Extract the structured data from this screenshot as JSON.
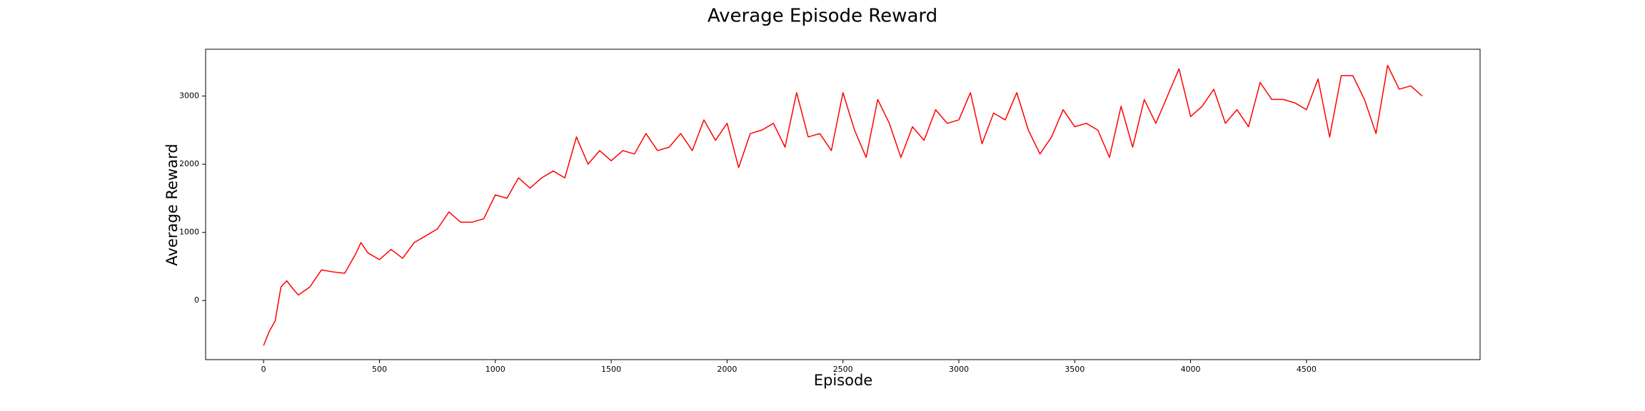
{
  "chart_data": {
    "type": "line",
    "title": "Average Episode Reward",
    "x_label": "Episode",
    "y_label": "Average Reward",
    "x": [
      0,
      25,
      50,
      75,
      100,
      125,
      150,
      200,
      250,
      300,
      350,
      400,
      420,
      450,
      500,
      550,
      600,
      650,
      700,
      750,
      800,
      850,
      900,
      950,
      1000,
      1050,
      1100,
      1150,
      1200,
      1250,
      1300,
      1350,
      1400,
      1450,
      1500,
      1550,
      1600,
      1650,
      1700,
      1750,
      1800,
      1850,
      1900,
      1950,
      2000,
      2050,
      2100,
      2150,
      2200,
      2250,
      2300,
      2350,
      2400,
      2450,
      2500,
      2550,
      2600,
      2650,
      2700,
      2750,
      2800,
      2850,
      2900,
      2950,
      3000,
      3050,
      3100,
      3150,
      3200,
      3250,
      3300,
      3350,
      3400,
      3450,
      3500,
      3550,
      3600,
      3650,
      3700,
      3750,
      3800,
      3850,
      3900,
      3950,
      4000,
      4050,
      4100,
      4150,
      4200,
      4250,
      4300,
      4350,
      4400,
      4450,
      4500,
      4550,
      4600,
      4650,
      4700,
      4750,
      4800,
      4850,
      4900,
      4950,
      4999
    ],
    "series": [
      {
        "name": "Average Reward",
        "color": "#ff0000",
        "values": [
          -660,
          -450,
          -300,
          200,
          290,
          180,
          80,
          200,
          450,
          420,
          400,
          700,
          850,
          700,
          600,
          750,
          620,
          850,
          950,
          1050,
          1300,
          1150,
          1150,
          1200,
          1550,
          1500,
          1800,
          1650,
          1800,
          1900,
          1800,
          2400,
          2000,
          2200,
          2050,
          2200,
          2150,
          2450,
          2200,
          2250,
          2450,
          2200,
          2650,
          2350,
          2600,
          1950,
          2450,
          2500,
          2600,
          2250,
          3050,
          2400,
          2450,
          2200,
          3050,
          2500,
          2100,
          2950,
          2600,
          2100,
          2550,
          2350,
          2800,
          2600,
          2650,
          3050,
          2300,
          2750,
          2650,
          3050,
          2500,
          2150,
          2400,
          2800,
          2550,
          2600,
          2500,
          2100,
          2850,
          2250,
          2950,
          2600,
          3000,
          3400,
          2700,
          2850,
          3100,
          2600,
          2800,
          2550,
          3200,
          2950,
          2950,
          2900,
          2800,
          3250,
          2400,
          3300,
          3300,
          2950,
          2450,
          3450,
          3100,
          3150,
          3000
        ]
      }
    ],
    "xlim": [
      -250,
      5249
    ],
    "ylim": [
      -867,
      3687
    ],
    "xticks": [
      0,
      500,
      1000,
      1500,
      2000,
      2500,
      3000,
      3500,
      4000,
      4500
    ],
    "yticks": [
      0,
      1000,
      2000,
      3000
    ]
  }
}
